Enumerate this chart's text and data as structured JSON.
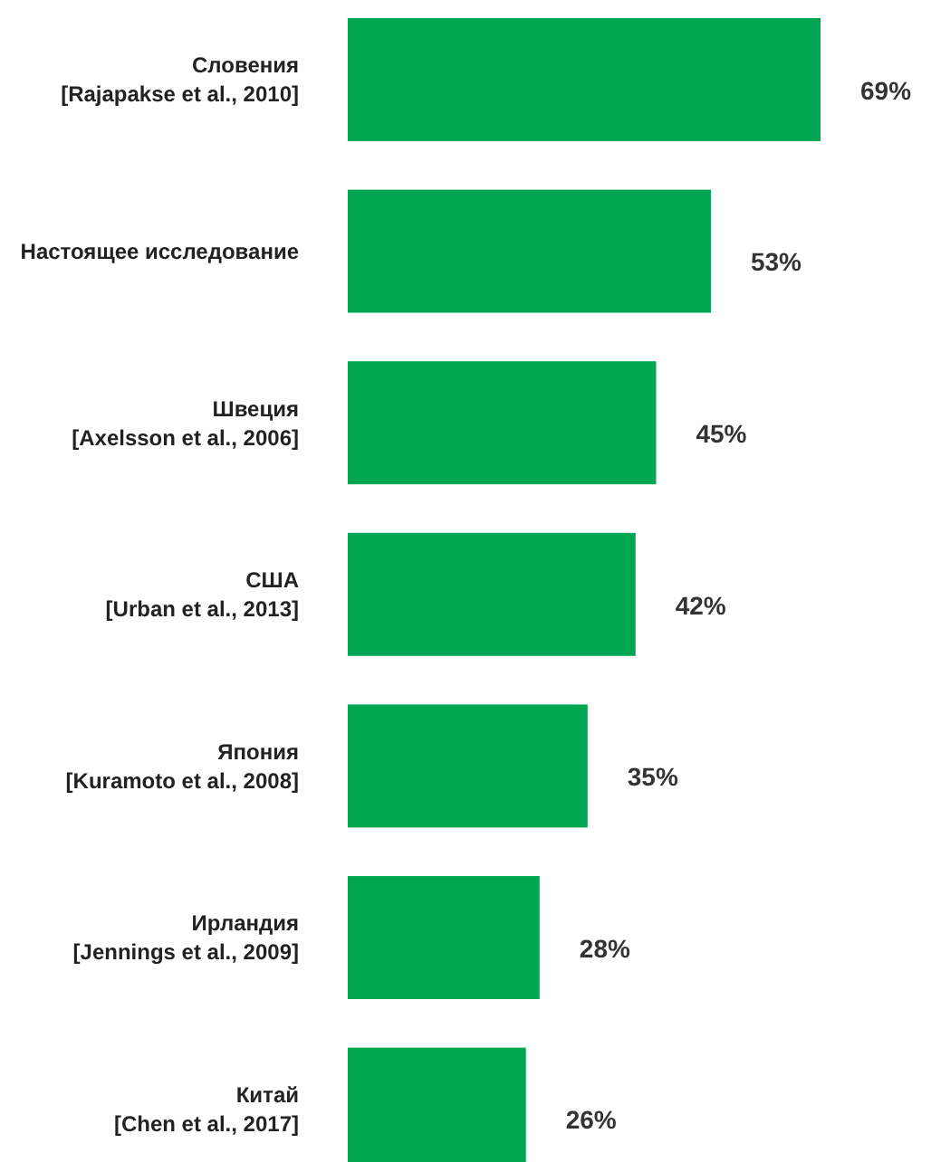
{
  "chart_data": {
    "type": "bar",
    "orientation": "horizontal",
    "categories": [
      "Словения\n[Rajapakse et al., 2010]",
      "Настоящее исследование",
      "Швеция\n[Axelsson et al., 2006]",
      "США\n[Urban et al., 2013]",
      "Япония\n[Kuramoto et al., 2008]",
      "Ирландия\n[Jennings et al., 2009]",
      "Китай\n[Chen et al., 2017]"
    ],
    "values": [
      69,
      53,
      45,
      42,
      35,
      28,
      26
    ],
    "value_labels": [
      "69%",
      "53%",
      "45%",
      "42%",
      "35%",
      "28%",
      "26%"
    ],
    "color": "#00a651"
  }
}
